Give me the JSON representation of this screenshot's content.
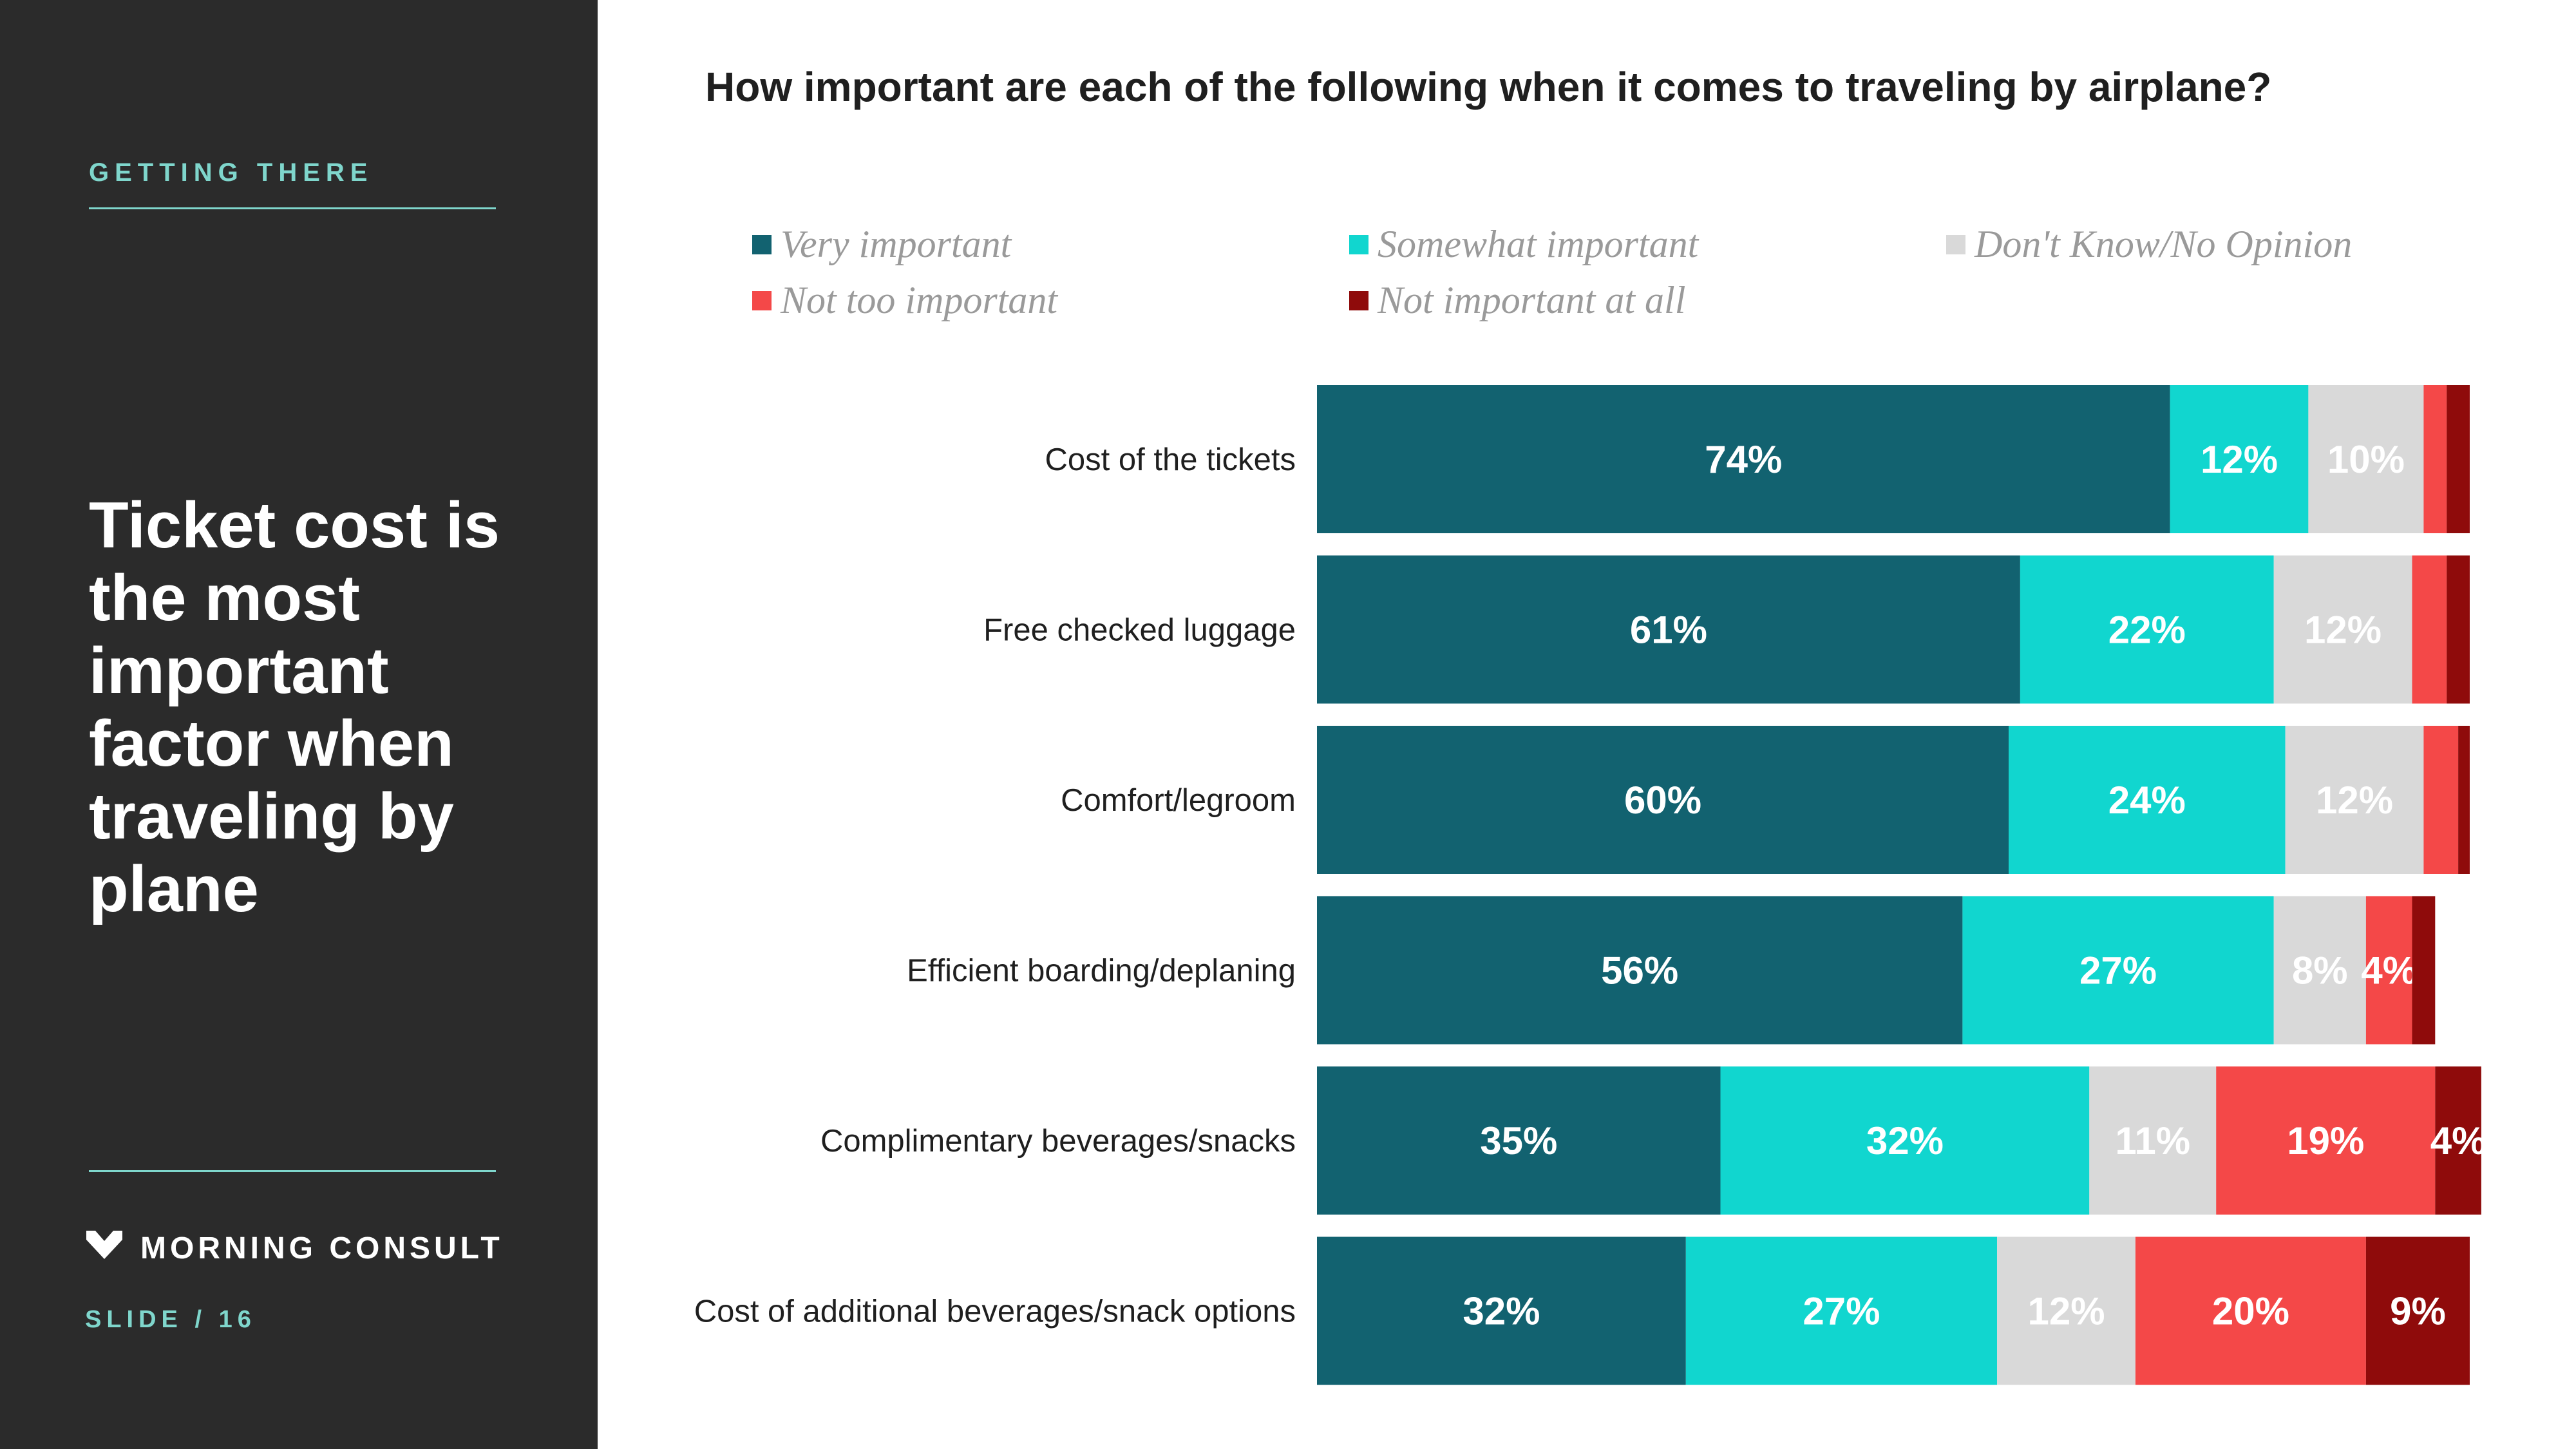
{
  "sidebar": {
    "section_label": "GETTING THERE",
    "headline": "Ticket cost is the most important factor when traveling by plane",
    "brand_name": "MORNING CONSULT",
    "slide_label": "SLIDE /",
    "slide_number": "16",
    "colors": {
      "background": "#2b2b2b",
      "accent": "#7fd6cc"
    }
  },
  "chart_data": {
    "type": "bar",
    "orientation": "horizontal",
    "stacked": true,
    "title": "How important are each of the following when it comes to traveling by airplane?",
    "xlabel": "",
    "ylabel": "",
    "xlim": [
      0,
      100
    ],
    "grid": false,
    "legend_position": "top",
    "categories": [
      "Cost of the tickets",
      "Free checked luggage",
      "Comfort/legroom",
      "Efficient boarding/deplaning",
      "Complimentary beverages/snacks",
      "Cost of additional beverages/snack options"
    ],
    "series": [
      {
        "name": "Very important",
        "color": "#126270",
        "values": [
          74,
          61,
          60,
          56,
          35,
          32
        ],
        "labels": [
          "74%",
          "61%",
          "60%",
          "56%",
          "35%",
          "32%"
        ]
      },
      {
        "name": "Somewhat important",
        "color": "#11d6cf",
        "values": [
          12,
          22,
          24,
          27,
          32,
          27
        ],
        "labels": [
          "12%",
          "22%",
          "24%",
          "27%",
          "32%",
          "27%"
        ]
      },
      {
        "name": "Don't Know/No Opinion",
        "color": "#d9d9d9",
        "values": [
          10,
          12,
          12,
          8,
          11,
          12
        ],
        "labels": [
          "10%",
          "12%",
          "12%",
          "8%",
          "11%",
          "12%"
        ]
      },
      {
        "name": "Not too important",
        "color": "#f44848",
        "values": [
          2,
          3,
          3,
          4,
          19,
          20
        ],
        "labels": [
          "",
          "",
          "",
          "4%",
          "19%",
          "20%"
        ]
      },
      {
        "name": "Not important at all",
        "color": "#8f0b0b",
        "values": [
          2,
          2,
          1,
          2,
          4,
          9
        ],
        "labels": [
          "",
          "",
          "",
          "",
          "4%",
          "9%"
        ]
      }
    ]
  }
}
